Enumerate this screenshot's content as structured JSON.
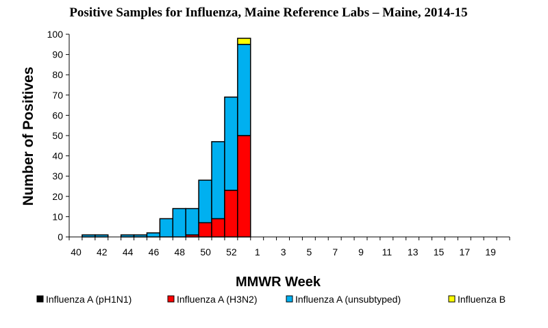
{
  "chart_data": {
    "type": "bar",
    "stacked": true,
    "title": "Positive Samples for Influenza, Maine Reference Labs – Maine, 2014-15",
    "xlabel": "MMWR Week",
    "ylabel": "Number of Positives",
    "ylim": [
      0,
      100
    ],
    "y_ticks": [
      0,
      10,
      20,
      30,
      40,
      50,
      60,
      70,
      80,
      90,
      100
    ],
    "categories": [
      "40",
      "41",
      "42",
      "43",
      "44",
      "45",
      "46",
      "47",
      "48",
      "49",
      "50",
      "51",
      "52",
      "53",
      "1",
      "2",
      "3",
      "4",
      "5",
      "6",
      "7",
      "8",
      "9",
      "10",
      "11",
      "12",
      "13",
      "14",
      "15",
      "16",
      "17",
      "18",
      "19",
      "20"
    ],
    "x_tick_labels": [
      "40",
      "42",
      "44",
      "46",
      "48",
      "50",
      "52",
      "1",
      "3",
      "5",
      "7",
      "9",
      "11",
      "13",
      "15",
      "17",
      "19"
    ],
    "series": [
      {
        "name": "Influenza A (pH1N1)",
        "color": "#000000",
        "values": [
          0,
          0,
          0,
          0,
          0,
          0,
          0,
          0,
          0,
          0,
          0,
          0,
          0,
          0,
          0,
          0,
          0,
          0,
          0,
          0,
          0,
          0,
          0,
          0,
          0,
          0,
          0,
          0,
          0,
          0,
          0,
          0,
          0,
          0
        ]
      },
      {
        "name": "Influenza A (H3N2)",
        "color": "#ff0000",
        "values": [
          0,
          0,
          0,
          0,
          0,
          0,
          0,
          0,
          0,
          1,
          7,
          9,
          23,
          50,
          0,
          0,
          0,
          0,
          0,
          0,
          0,
          0,
          0,
          0,
          0,
          0,
          0,
          0,
          0,
          0,
          0,
          0,
          0,
          0
        ]
      },
      {
        "name": "Influenza A (unsubtyped)",
        "color": "#00b0f0",
        "values": [
          0,
          1,
          1,
          0,
          1,
          1,
          2,
          9,
          14,
          13,
          21,
          38,
          46,
          45,
          0,
          0,
          0,
          0,
          0,
          0,
          0,
          0,
          0,
          0,
          0,
          0,
          0,
          0,
          0,
          0,
          0,
          0,
          0,
          0
        ]
      },
      {
        "name": "Influenza B",
        "color": "#ffff00",
        "values": [
          0,
          0,
          0,
          0,
          0,
          0,
          0,
          0,
          0,
          0,
          0,
          0,
          0,
          3,
          0,
          0,
          0,
          0,
          0,
          0,
          0,
          0,
          0,
          0,
          0,
          0,
          0,
          0,
          0,
          0,
          0,
          0,
          0,
          0
        ]
      }
    ],
    "grid": false,
    "legend_position": "bottom"
  }
}
